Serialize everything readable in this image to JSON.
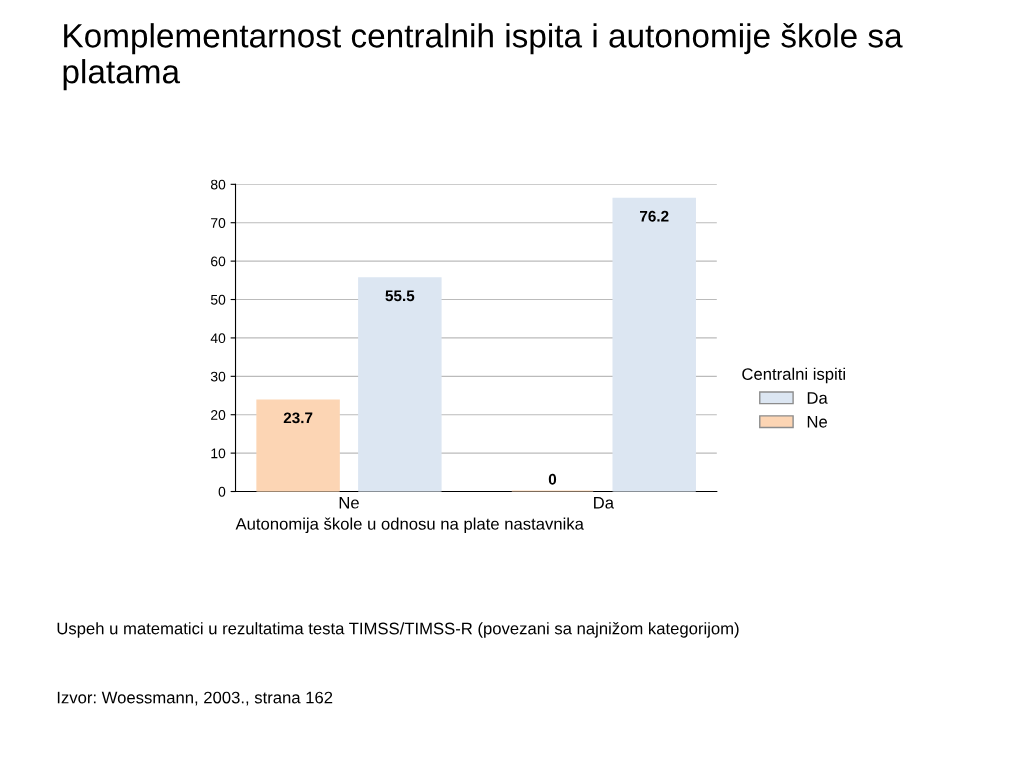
{
  "chart_data": {
    "type": "bar",
    "title": "Komplementarnost centralnih ispita i autonomije škole sa platama",
    "categories": [
      "Ne",
      "Da"
    ],
    "xlabel": "Autonomija škole u odnosu na plate nastavnika",
    "series": [
      {
        "name": "Ne",
        "color": "#fcd5b4",
        "values": [
          23.7,
          0
        ]
      },
      {
        "name": "Da",
        "color": "#dce6f2",
        "values": [
          55.5,
          76.2
        ]
      }
    ],
    "legend_title": "Centralni ispiti",
    "legend": "right",
    "ylim": [
      0,
      80
    ],
    "yticks": [
      0,
      10,
      20,
      30,
      40,
      50,
      60,
      70,
      80
    ],
    "grid": "y",
    "data_labels": true,
    "annotations": [
      "Uspeh u matematici u rezultatima testa TIMSS/TIMSS-R (povezani sa najnižom kategorijom)",
      "Izvor: Woessmann, 2003., strana 162"
    ]
  }
}
